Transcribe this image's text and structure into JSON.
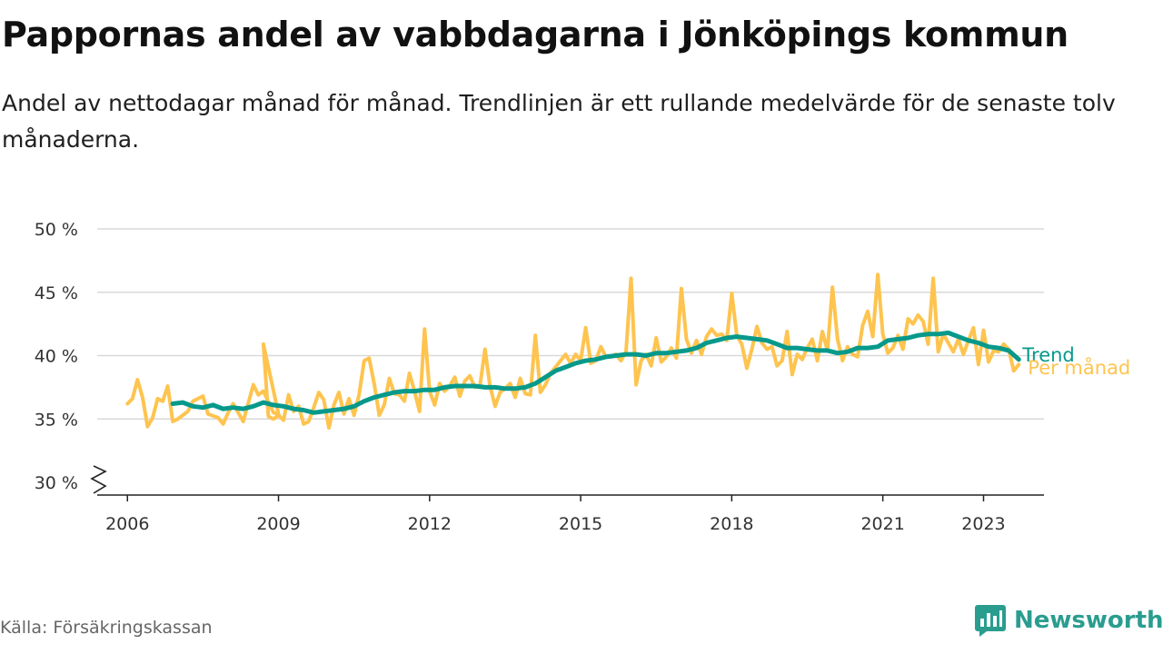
{
  "title": "Pappornas andel av vabbdagarna i Jönköpings kommun",
  "subtitle": "Andel av nettodagar månad för månad. Trendlinjen är ett rullande medelvärde för de senaste tolv månaderna.",
  "source": "Källa: Försäkringskassan",
  "brand": {
    "name": "Newsworthy",
    "icon": "newsworthy-logo-icon",
    "color": "#2a9d8f"
  },
  "chart_data": {
    "type": "line",
    "title": "Pappornas andel av vabbdagarna i Jönköpings kommun",
    "subtitle": "Andel av nettodagar månad för månad. Trendlinjen är ett rullande medelvärde för de senaste tolv månaderna.",
    "x_ticks": [
      {
        "value": 2006,
        "label": "2006"
      },
      {
        "value": 2009,
        "label": "2009"
      },
      {
        "value": 2012,
        "label": "2012"
      },
      {
        "value": 2015,
        "label": "2015"
      },
      {
        "value": 2018,
        "label": "2018"
      },
      {
        "value": 2021,
        "label": "2021"
      },
      {
        "value": 2023,
        "label": "2023"
      }
    ],
    "y_ticks": [
      {
        "value": 30,
        "label": "30 %"
      },
      {
        "value": 35,
        "label": "35 %"
      },
      {
        "value": 40,
        "label": "40 %"
      },
      {
        "value": 45,
        "label": "45 %"
      },
      {
        "value": 50,
        "label": "50 %"
      }
    ],
    "xlim": [
      2005.4,
      2024.2
    ],
    "ylim": [
      30,
      50
    ],
    "y_axis_break": true,
    "grid": "horizontal",
    "legend": "inline labels at line ends",
    "series": [
      {
        "name": "Per månad",
        "color": "#fec44f",
        "points": [
          [
            2006.0,
            36.2
          ],
          [
            2006.1,
            36.6
          ],
          [
            2006.2,
            38.1
          ],
          [
            2006.3,
            36.7
          ],
          [
            2006.4,
            34.4
          ],
          [
            2006.5,
            35.1
          ],
          [
            2006.6,
            36.6
          ],
          [
            2006.7,
            36.4
          ],
          [
            2006.8,
            37.6
          ],
          [
            2006.9,
            34.8
          ],
          [
            2007.0,
            35.0
          ],
          [
            2007.2,
            35.6
          ],
          [
            2007.3,
            36.4
          ],
          [
            2007.5,
            36.8
          ],
          [
            2007.6,
            35.4
          ],
          [
            2007.8,
            35.1
          ],
          [
            2007.9,
            34.6
          ],
          [
            2008.0,
            35.5
          ],
          [
            2008.1,
            36.2
          ],
          [
            2008.3,
            34.8
          ],
          [
            2008.5,
            37.7
          ],
          [
            2008.6,
            36.9
          ],
          [
            2008.7,
            37.2
          ],
          [
            2008.9,
            35.5
          ],
          [
            2009.0,
            35.4
          ],
          [
            2008.7,
            40.9
          ],
          [
            2008.8,
            35.2
          ],
          [
            2008.9,
            35.0
          ],
          [
            2009.0,
            35.3
          ],
          [
            2009.1,
            34.9
          ],
          [
            2009.2,
            36.9
          ],
          [
            2009.3,
            35.6
          ],
          [
            2009.4,
            36.0
          ],
          [
            2009.5,
            34.6
          ],
          [
            2009.6,
            34.8
          ],
          [
            2009.7,
            35.9
          ],
          [
            2009.8,
            37.1
          ],
          [
            2009.9,
            36.5
          ],
          [
            2010.0,
            34.3
          ],
          [
            2010.1,
            36.1
          ],
          [
            2010.2,
            37.1
          ],
          [
            2010.3,
            35.4
          ],
          [
            2010.4,
            36.6
          ],
          [
            2010.5,
            35.3
          ],
          [
            2010.6,
            36.9
          ],
          [
            2010.7,
            39.6
          ],
          [
            2010.8,
            39.8
          ],
          [
            2010.9,
            37.8
          ],
          [
            2011.0,
            35.3
          ],
          [
            2011.1,
            36.1
          ],
          [
            2011.2,
            38.2
          ],
          [
            2011.3,
            37.0
          ],
          [
            2011.4,
            36.9
          ],
          [
            2011.5,
            36.4
          ],
          [
            2011.6,
            38.6
          ],
          [
            2011.7,
            37.2
          ],
          [
            2011.8,
            35.6
          ],
          [
            2011.9,
            42.1
          ],
          [
            2012.0,
            37.2
          ],
          [
            2012.1,
            36.1
          ],
          [
            2012.2,
            37.8
          ],
          [
            2012.3,
            37.2
          ],
          [
            2012.4,
            37.6
          ],
          [
            2012.5,
            38.3
          ],
          [
            2012.6,
            36.8
          ],
          [
            2012.7,
            38.0
          ],
          [
            2012.8,
            38.4
          ],
          [
            2012.9,
            37.5
          ],
          [
            2013.0,
            37.6
          ],
          [
            2013.1,
            40.5
          ],
          [
            2013.2,
            37.6
          ],
          [
            2013.3,
            36.0
          ],
          [
            2013.4,
            37.1
          ],
          [
            2013.5,
            37.4
          ],
          [
            2013.6,
            37.8
          ],
          [
            2013.7,
            36.7
          ],
          [
            2013.8,
            38.2
          ],
          [
            2013.9,
            37.0
          ],
          [
            2014.0,
            36.9
          ],
          [
            2014.1,
            41.6
          ],
          [
            2014.2,
            37.1
          ],
          [
            2014.3,
            37.7
          ],
          [
            2014.4,
            38.6
          ],
          [
            2014.5,
            39.1
          ],
          [
            2014.6,
            39.6
          ],
          [
            2014.7,
            40.1
          ],
          [
            2014.8,
            39.4
          ],
          [
            2014.9,
            40.1
          ],
          [
            2015.0,
            39.6
          ],
          [
            2015.1,
            42.2
          ],
          [
            2015.2,
            39.4
          ],
          [
            2015.3,
            39.6
          ],
          [
            2015.4,
            40.7
          ],
          [
            2015.5,
            39.9
          ],
          [
            2015.6,
            39.9
          ],
          [
            2015.7,
            40.1
          ],
          [
            2015.8,
            39.6
          ],
          [
            2015.9,
            40.3
          ],
          [
            2016.0,
            46.1
          ],
          [
            2016.1,
            37.7
          ],
          [
            2016.2,
            39.6
          ],
          [
            2016.3,
            40.1
          ],
          [
            2016.4,
            39.2
          ],
          [
            2016.5,
            41.4
          ],
          [
            2016.6,
            39.5
          ],
          [
            2016.7,
            39.9
          ],
          [
            2016.8,
            40.6
          ],
          [
            2016.9,
            39.8
          ],
          [
            2017.0,
            45.3
          ],
          [
            2017.1,
            41.3
          ],
          [
            2017.2,
            40.2
          ],
          [
            2017.3,
            41.2
          ],
          [
            2017.4,
            40.1
          ],
          [
            2017.5,
            41.5
          ],
          [
            2017.6,
            42.1
          ],
          [
            2017.7,
            41.6
          ],
          [
            2017.8,
            41.7
          ],
          [
            2017.9,
            41.2
          ],
          [
            2018.0,
            44.9
          ],
          [
            2018.1,
            41.6
          ],
          [
            2018.2,
            40.9
          ],
          [
            2018.3,
            39.0
          ],
          [
            2018.4,
            40.5
          ],
          [
            2018.5,
            42.3
          ],
          [
            2018.6,
            41.0
          ],
          [
            2018.7,
            40.5
          ],
          [
            2018.8,
            40.7
          ],
          [
            2018.9,
            39.2
          ],
          [
            2019.0,
            39.6
          ],
          [
            2019.1,
            41.9
          ],
          [
            2019.2,
            38.5
          ],
          [
            2019.3,
            40.1
          ],
          [
            2019.4,
            39.7
          ],
          [
            2019.5,
            40.6
          ],
          [
            2019.6,
            41.3
          ],
          [
            2019.7,
            39.6
          ],
          [
            2019.8,
            41.9
          ],
          [
            2019.9,
            40.4
          ],
          [
            2020.0,
            45.4
          ],
          [
            2020.1,
            41.3
          ],
          [
            2020.2,
            39.6
          ],
          [
            2020.3,
            40.7
          ],
          [
            2020.4,
            40.1
          ],
          [
            2020.5,
            39.9
          ],
          [
            2020.6,
            42.4
          ],
          [
            2020.7,
            43.5
          ],
          [
            2020.8,
            41.5
          ],
          [
            2020.9,
            46.4
          ],
          [
            2021.0,
            41.7
          ],
          [
            2021.1,
            40.2
          ],
          [
            2021.2,
            40.6
          ],
          [
            2021.3,
            41.6
          ],
          [
            2021.4,
            40.5
          ],
          [
            2021.5,
            42.9
          ],
          [
            2021.6,
            42.5
          ],
          [
            2021.7,
            43.2
          ],
          [
            2021.8,
            42.7
          ],
          [
            2021.9,
            40.9
          ],
          [
            2022.0,
            46.1
          ],
          [
            2022.1,
            40.3
          ],
          [
            2022.2,
            41.7
          ],
          [
            2022.3,
            41.0
          ],
          [
            2022.4,
            40.3
          ],
          [
            2022.5,
            41.3
          ],
          [
            2022.6,
            40.1
          ],
          [
            2022.7,
            41.2
          ],
          [
            2022.8,
            42.2
          ],
          [
            2022.9,
            39.3
          ],
          [
            2023.0,
            42.0
          ],
          [
            2023.1,
            39.5
          ],
          [
            2023.2,
            40.4
          ],
          [
            2023.3,
            40.3
          ],
          [
            2023.4,
            40.9
          ],
          [
            2023.5,
            40.5
          ],
          [
            2023.6,
            38.8
          ],
          [
            2023.7,
            39.3
          ]
        ]
      },
      {
        "name": "Trend",
        "color": "#06998b",
        "points": [
          [
            2006.9,
            36.2
          ],
          [
            2007.1,
            36.3
          ],
          [
            2007.3,
            36.0
          ],
          [
            2007.5,
            35.9
          ],
          [
            2007.7,
            36.1
          ],
          [
            2007.9,
            35.8
          ],
          [
            2008.1,
            35.9
          ],
          [
            2008.3,
            35.8
          ],
          [
            2008.5,
            36.0
          ],
          [
            2008.7,
            36.3
          ],
          [
            2008.9,
            36.1
          ],
          [
            2009.1,
            36.0
          ],
          [
            2009.3,
            35.8
          ],
          [
            2009.5,
            35.7
          ],
          [
            2009.7,
            35.5
          ],
          [
            2009.9,
            35.6
          ],
          [
            2010.1,
            35.7
          ],
          [
            2010.3,
            35.8
          ],
          [
            2010.5,
            36.0
          ],
          [
            2010.7,
            36.4
          ],
          [
            2010.9,
            36.7
          ],
          [
            2011.1,
            36.9
          ],
          [
            2011.3,
            37.1
          ],
          [
            2011.5,
            37.2
          ],
          [
            2011.7,
            37.2
          ],
          [
            2011.9,
            37.3
          ],
          [
            2012.1,
            37.3
          ],
          [
            2012.3,
            37.5
          ],
          [
            2012.5,
            37.6
          ],
          [
            2012.7,
            37.6
          ],
          [
            2012.9,
            37.6
          ],
          [
            2013.1,
            37.5
          ],
          [
            2013.3,
            37.5
          ],
          [
            2013.5,
            37.4
          ],
          [
            2013.7,
            37.4
          ],
          [
            2013.9,
            37.5
          ],
          [
            2014.1,
            37.8
          ],
          [
            2014.3,
            38.3
          ],
          [
            2014.5,
            38.8
          ],
          [
            2014.7,
            39.1
          ],
          [
            2014.9,
            39.4
          ],
          [
            2015.1,
            39.6
          ],
          [
            2015.3,
            39.7
          ],
          [
            2015.5,
            39.9
          ],
          [
            2015.7,
            40.0
          ],
          [
            2015.9,
            40.1
          ],
          [
            2016.1,
            40.1
          ],
          [
            2016.3,
            40.0
          ],
          [
            2016.5,
            40.2
          ],
          [
            2016.7,
            40.2
          ],
          [
            2016.9,
            40.3
          ],
          [
            2017.1,
            40.4
          ],
          [
            2017.3,
            40.6
          ],
          [
            2017.5,
            41.0
          ],
          [
            2017.7,
            41.2
          ],
          [
            2017.9,
            41.4
          ],
          [
            2018.1,
            41.5
          ],
          [
            2018.3,
            41.4
          ],
          [
            2018.5,
            41.3
          ],
          [
            2018.7,
            41.2
          ],
          [
            2018.9,
            40.9
          ],
          [
            2019.1,
            40.6
          ],
          [
            2019.3,
            40.6
          ],
          [
            2019.5,
            40.5
          ],
          [
            2019.7,
            40.4
          ],
          [
            2019.9,
            40.4
          ],
          [
            2020.1,
            40.2
          ],
          [
            2020.3,
            40.3
          ],
          [
            2020.5,
            40.6
          ],
          [
            2020.7,
            40.6
          ],
          [
            2020.9,
            40.7
          ],
          [
            2021.1,
            41.2
          ],
          [
            2021.3,
            41.3
          ],
          [
            2021.5,
            41.4
          ],
          [
            2021.7,
            41.6
          ],
          [
            2021.9,
            41.7
          ],
          [
            2022.1,
            41.7
          ],
          [
            2022.3,
            41.8
          ],
          [
            2022.5,
            41.5
          ],
          [
            2022.7,
            41.2
          ],
          [
            2022.9,
            41.0
          ],
          [
            2023.1,
            40.7
          ],
          [
            2023.3,
            40.6
          ],
          [
            2023.5,
            40.4
          ],
          [
            2023.7,
            39.7
          ]
        ]
      }
    ]
  }
}
